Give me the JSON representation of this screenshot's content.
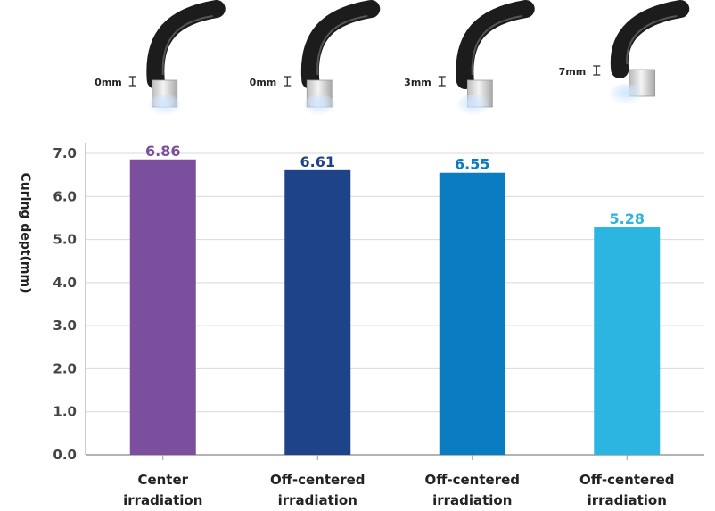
{
  "chart_data": {
    "type": "bar",
    "ylabel": "Curing dept(mm)",
    "ylim": [
      0,
      7
    ],
    "yticks": [
      "0.0",
      "1.0",
      "2.0",
      "3.0",
      "4.0",
      "5.0",
      "6.0",
      "7.0"
    ],
    "grid": true,
    "categories": [
      {
        "line1": "Center",
        "line2": "irradiation"
      },
      {
        "line1": "Off-centered",
        "line2": "irradiation"
      },
      {
        "line1": "Off-centered",
        "line2": "irradiation"
      },
      {
        "line1": "Off-centered",
        "line2": "irradiation"
      }
    ],
    "values": [
      6.86,
      6.61,
      6.55,
      5.28
    ],
    "value_labels": [
      "6.86",
      "6.61",
      "6.55",
      "5.28"
    ],
    "bar_colors": [
      "#7b4f9e",
      "#1e4388",
      "#0a7cc1",
      "#2bb5e0"
    ],
    "label_colors": [
      "#7b4f9e",
      "#1e4388",
      "#0a7cc1",
      "#2bb5e0"
    ],
    "illustration_labels": [
      "0mm",
      "0mm",
      "3mm",
      "7mm"
    ]
  }
}
